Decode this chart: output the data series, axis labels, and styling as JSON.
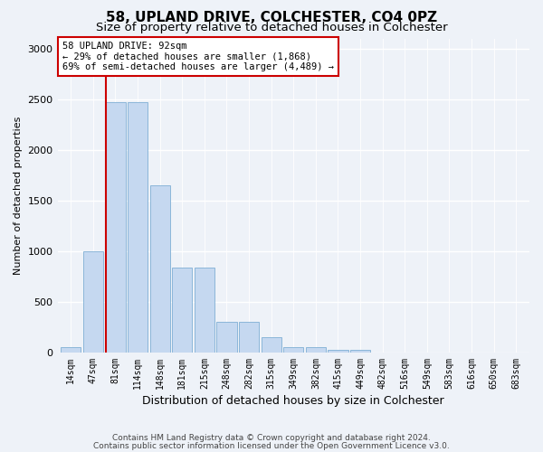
{
  "title1": "58, UPLAND DRIVE, COLCHESTER, CO4 0PZ",
  "title2": "Size of property relative to detached houses in Colchester",
  "xlabel": "Distribution of detached houses by size in Colchester",
  "ylabel": "Number of detached properties",
  "categories": [
    "14sqm",
    "47sqm",
    "81sqm",
    "114sqm",
    "148sqm",
    "181sqm",
    "215sqm",
    "248sqm",
    "282sqm",
    "315sqm",
    "349sqm",
    "382sqm",
    "415sqm",
    "449sqm",
    "482sqm",
    "516sqm",
    "549sqm",
    "583sqm",
    "616sqm",
    "650sqm",
    "683sqm"
  ],
  "values": [
    55,
    1000,
    2470,
    2470,
    1650,
    840,
    840,
    300,
    300,
    150,
    55,
    55,
    30,
    30,
    0,
    0,
    0,
    0,
    0,
    0,
    0
  ],
  "bar_color": "#c5d8f0",
  "bar_edge_color": "#7fafd4",
  "vline_color": "#cc0000",
  "vline_pos": 1.57,
  "annotation_title": "58 UPLAND DRIVE: 92sqm",
  "annotation_line1": "← 29% of detached houses are smaller (1,868)",
  "annotation_line2": "69% of semi-detached houses are larger (4,489) →",
  "annotation_box_color": "#ffffff",
  "annotation_border_color": "#cc0000",
  "ylim": [
    0,
    3100
  ],
  "yticks": [
    0,
    500,
    1000,
    1500,
    2000,
    2500,
    3000
  ],
  "footer1": "Contains HM Land Registry data © Crown copyright and database right 2024.",
  "footer2": "Contains public sector information licensed under the Open Government Licence v3.0.",
  "bg_color": "#eef2f8",
  "plot_bg_color": "#eef2f8",
  "title1_fontsize": 11,
  "title2_fontsize": 9.5,
  "ylabel_fontsize": 8,
  "xlabel_fontsize": 9
}
